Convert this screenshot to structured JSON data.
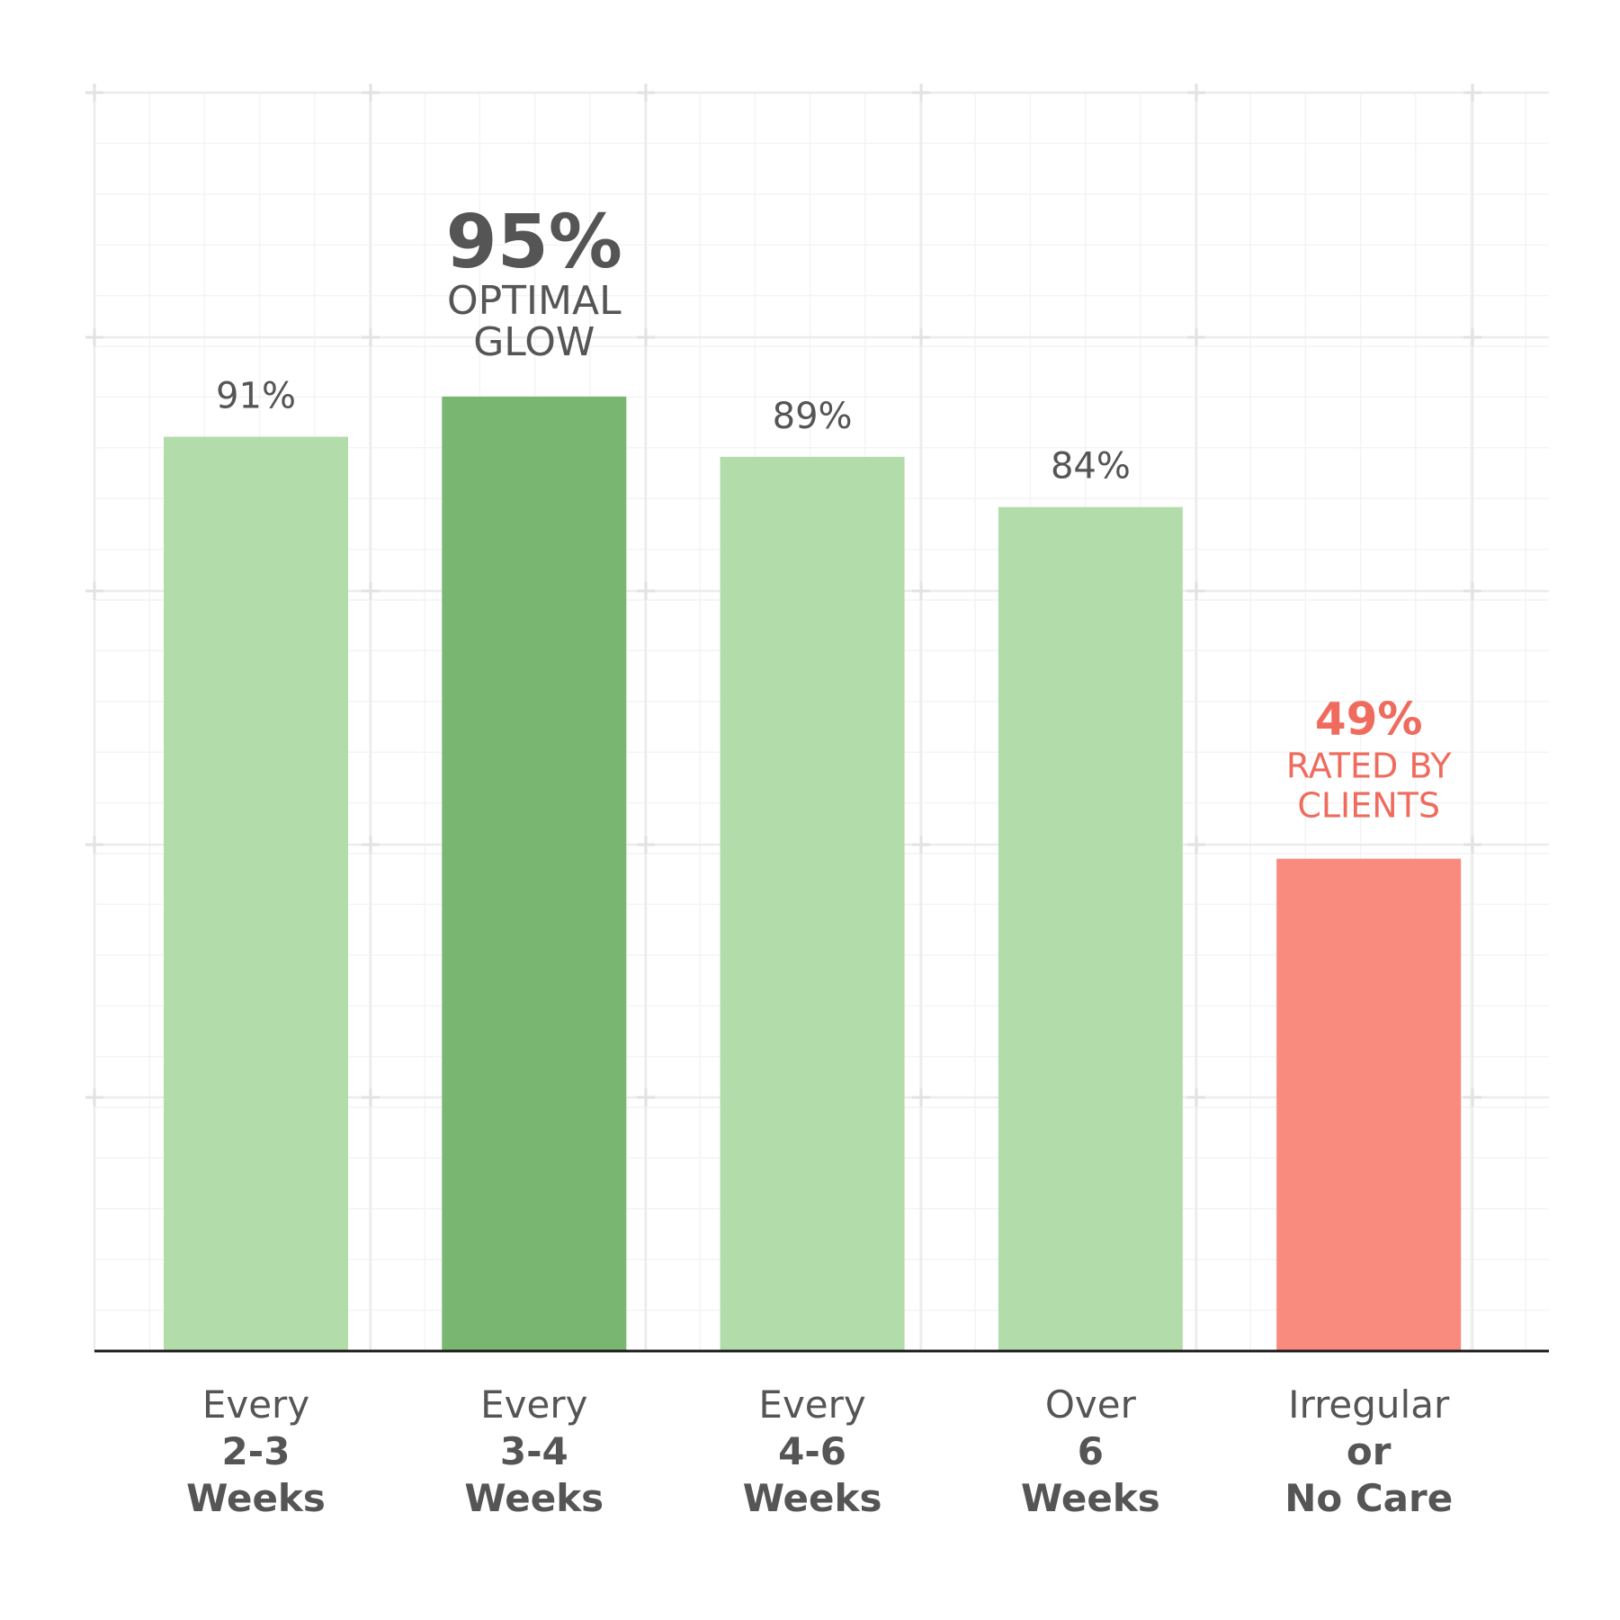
{
  "chart_data": {
    "type": "bar",
    "categories": [
      {
        "line1": "Every",
        "line2": "2-3",
        "line3": "Weeks"
      },
      {
        "line1": "Every",
        "line2": "3-4",
        "line3": "Weeks"
      },
      {
        "line1": "Every",
        "line2": "4-6",
        "line3": "Weeks"
      },
      {
        "line1": "Over",
        "line2": "6",
        "line3": "Weeks"
      },
      {
        "line1": "Irregular",
        "line2": "or",
        "line3": "No Care"
      }
    ],
    "values": [
      91,
      95,
      89,
      84,
      49
    ],
    "value_labels": [
      {
        "main": "91%",
        "sub": []
      },
      {
        "main": "95%",
        "sub": [
          "OPTIMAL",
          "GLOW"
        ]
      },
      {
        "main": "89%",
        "sub": []
      },
      {
        "main": "84%",
        "sub": []
      },
      {
        "main": "49%",
        "sub": [
          "RATED BY",
          "CLIENTS"
        ]
      }
    ],
    "highlight": [
      false,
      true,
      false,
      false,
      false
    ],
    "bar_colors": [
      "#b3dcab",
      "#79b671",
      "#b3dcab",
      "#b3dcab",
      "#f88b7d"
    ],
    "label_colors": [
      "#555555",
      "#555555",
      "#555555",
      "#555555",
      "#ef6b5e"
    ],
    "ylim": [
      0,
      100
    ],
    "grid": true,
    "axis_color": "#1a1a1a",
    "grid_color": "#ececec",
    "category_text_color": "#555555"
  }
}
